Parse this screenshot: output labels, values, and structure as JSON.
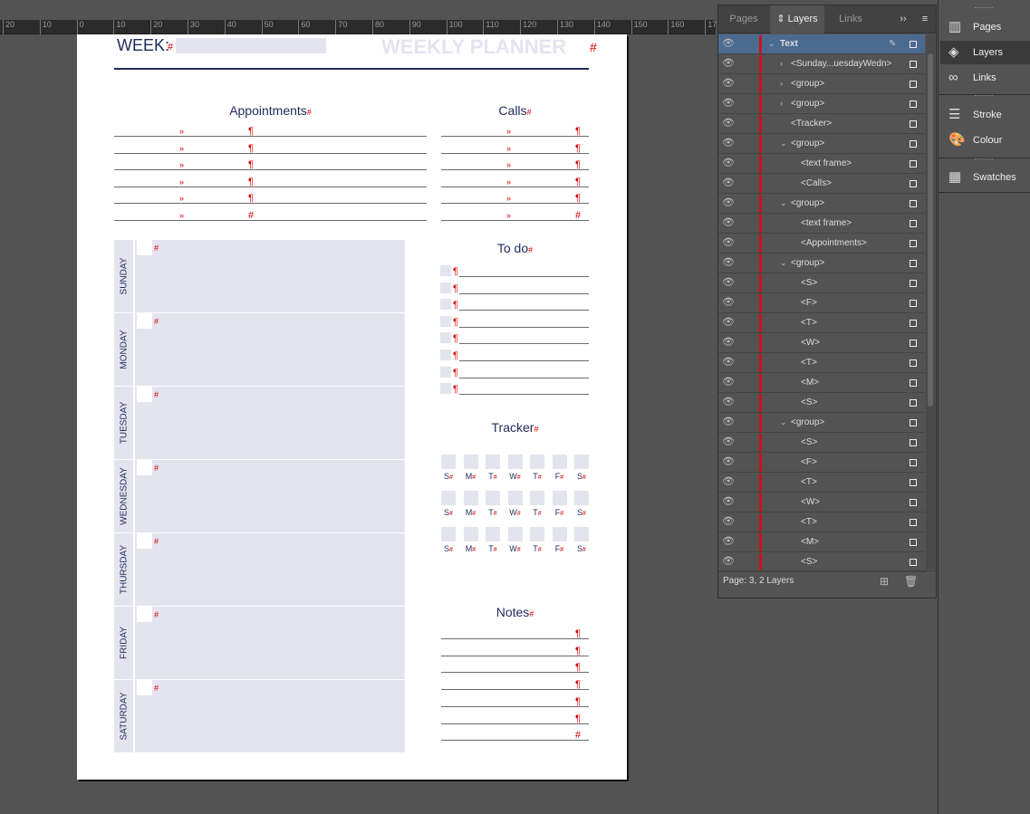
{
  "ruler": [
    "20",
    "10",
    "0",
    "10",
    "20",
    "30",
    "40",
    "50",
    "60",
    "70",
    "80",
    "90",
    "100",
    "110",
    "120",
    "130",
    "140",
    "150",
    "160",
    "17"
  ],
  "planner": {
    "week_label": "WEEK:",
    "title": "WEEKLY PLANNER",
    "hash": "#",
    "pilcrow": "¶",
    "guillemet": "»",
    "appointments": "Appointments",
    "calls": "Calls",
    "todo": "To do",
    "tracker": "Tracker",
    "notes": "Notes",
    "days": [
      "SUNDAY",
      "MONDAY",
      "TUESDAY",
      "WEDNESDAY",
      "THURSDAY",
      "FRIDAY",
      "SATURDAY"
    ],
    "tracker_days": [
      "S",
      "M",
      "T",
      "W",
      "T",
      "F",
      "S"
    ]
  },
  "layers_panel": {
    "tabs": [
      "Pages",
      "Layers",
      "Links"
    ],
    "menu": "››",
    "rows": [
      {
        "label": "Text",
        "level": 0,
        "tw": "open",
        "selected": true
      },
      {
        "label": "<Sunday...uesdayWedn>",
        "level": 1,
        "tw": "closed"
      },
      {
        "label": "<group>",
        "level": 1,
        "tw": "closed"
      },
      {
        "label": "<group>",
        "level": 1,
        "tw": "closed"
      },
      {
        "label": "<Tracker>",
        "level": 1,
        "tw": ""
      },
      {
        "label": "<group>",
        "level": 1,
        "tw": "open"
      },
      {
        "label": "<text frame>",
        "level": 2,
        "tw": ""
      },
      {
        "label": "<Calls>",
        "level": 2,
        "tw": ""
      },
      {
        "label": "<group>",
        "level": 1,
        "tw": "open"
      },
      {
        "label": "<text frame>",
        "level": 2,
        "tw": ""
      },
      {
        "label": "<Appointments>",
        "level": 2,
        "tw": ""
      },
      {
        "label": "<group>",
        "level": 1,
        "tw": "open"
      },
      {
        "label": "<S>",
        "level": 2,
        "tw": ""
      },
      {
        "label": "<F>",
        "level": 2,
        "tw": ""
      },
      {
        "label": "<T>",
        "level": 2,
        "tw": ""
      },
      {
        "label": "<W>",
        "level": 2,
        "tw": ""
      },
      {
        "label": "<T>",
        "level": 2,
        "tw": ""
      },
      {
        "label": "<M>",
        "level": 2,
        "tw": ""
      },
      {
        "label": "<S>",
        "level": 2,
        "tw": ""
      },
      {
        "label": "<group>",
        "level": 1,
        "tw": "open"
      },
      {
        "label": "<S>",
        "level": 2,
        "tw": ""
      },
      {
        "label": "<F>",
        "level": 2,
        "tw": ""
      },
      {
        "label": "<T>",
        "level": 2,
        "tw": ""
      },
      {
        "label": "<W>",
        "level": 2,
        "tw": ""
      },
      {
        "label": "<T>",
        "level": 2,
        "tw": ""
      },
      {
        "label": "<M>",
        "level": 2,
        "tw": ""
      },
      {
        "label": "<S>",
        "level": 2,
        "tw": ""
      }
    ],
    "footer": "Page: 3, 2 Layers"
  },
  "dock": {
    "items": [
      {
        "label": "Pages",
        "icon": "pages-icon",
        "glyph": "▥"
      },
      {
        "label": "Layers",
        "icon": "layers-icon",
        "glyph": "◈",
        "active": true
      },
      {
        "label": "Links",
        "icon": "links-icon",
        "glyph": "∞"
      },
      {
        "label": "Stroke",
        "icon": "stroke-icon",
        "glyph": "☰"
      },
      {
        "label": "Colour",
        "icon": "colour-icon",
        "glyph": "🎨"
      },
      {
        "label": "Swatches",
        "icon": "swatches-icon",
        "glyph": "▦"
      }
    ]
  },
  "colors": {
    "navy": "#1f2a5a",
    "fill": "#e4e4ef",
    "layer_color": "#c8141b",
    "selection": "#4b6a8f"
  }
}
